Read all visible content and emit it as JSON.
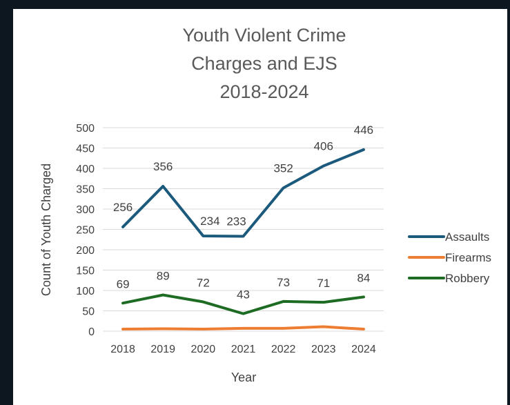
{
  "chart_data": {
    "type": "line",
    "title_lines": [
      "Youth Violent Crime",
      "Charges and EJS",
      "2018-2024"
    ],
    "xlabel": "Year",
    "ylabel": "Count of Youth Charged",
    "categories": [
      "2018",
      "2019",
      "2020",
      "2021",
      "2022",
      "2023",
      "2024"
    ],
    "ylim": [
      0,
      500
    ],
    "yticks": [
      0,
      50,
      100,
      150,
      200,
      250,
      300,
      350,
      400,
      450,
      500
    ],
    "grid": true,
    "legend_position": "right",
    "series": [
      {
        "name": "Assaults",
        "color": "#1b5a7c",
        "values": [
          256,
          356,
          234,
          233,
          352,
          406,
          446
        ],
        "show_labels": true
      },
      {
        "name": "Firearms",
        "color": "#ed7d31",
        "values": [
          5,
          6,
          5,
          7,
          7,
          11,
          5
        ],
        "show_labels": false
      },
      {
        "name": "Robbery",
        "color": "#1e6b23",
        "values": [
          69,
          89,
          72,
          43,
          73,
          71,
          84
        ],
        "show_labels": true
      }
    ]
  }
}
